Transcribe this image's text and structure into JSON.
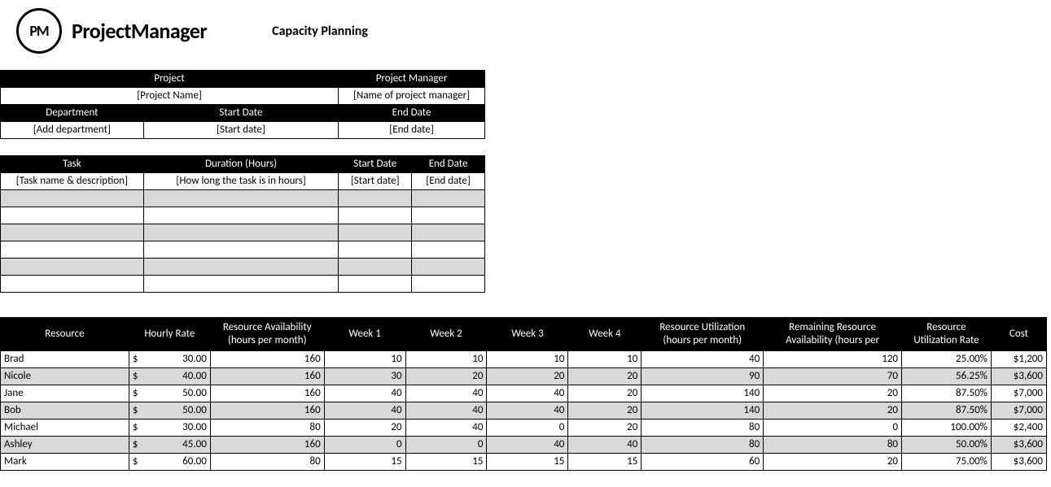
{
  "brand": {
    "logo_initials": "PM",
    "logo_text": "ProjectManager"
  },
  "page_title": "Capacity Planning",
  "project_header": {
    "row1": [
      "Project",
      "Project Manager"
    ],
    "row1_values": [
      "[Project Name]",
      "[Name of project manager]"
    ],
    "row2": [
      "Department",
      "Start Date",
      "End Date"
    ],
    "row2_values": [
      "[Add department]",
      "[Start date]",
      "[End date]"
    ]
  },
  "task_header": [
    "Task",
    "Duration (Hours)",
    "Start Date",
    "End Date"
  ],
  "task_placeholder": [
    "[Task name & description]",
    "[How long the task is in hours]",
    "[Start date]",
    "[End date]"
  ],
  "task_blank_rows": 6,
  "resource_header": [
    "Resource",
    "Hourly Rate",
    "Resource Availability (hours per month)",
    "Week 1",
    "Week 2",
    "Week 3",
    "Week 4",
    "Resource Utilization (hours per month)",
    "Remaining Resource Availability (hours per",
    "Resource Utilization Rate",
    "Cost"
  ],
  "resources": [
    {
      "name": "Brad",
      "rate": "30.00",
      "avail": 160,
      "w1": 10,
      "w2": 10,
      "w3": 10,
      "w4": 10,
      "util": 40,
      "remain": 120,
      "rate_pct": "25.00%",
      "cost": "$1,200"
    },
    {
      "name": "Nicole",
      "rate": "40.00",
      "avail": 160,
      "w1": 30,
      "w2": 20,
      "w3": 20,
      "w4": 20,
      "util": 90,
      "remain": 70,
      "rate_pct": "56.25%",
      "cost": "$3,600"
    },
    {
      "name": "Jane",
      "rate": "50.00",
      "avail": 160,
      "w1": 40,
      "w2": 40,
      "w3": 40,
      "w4": 20,
      "util": 140,
      "remain": 20,
      "rate_pct": "87.50%",
      "cost": "$7,000"
    },
    {
      "name": "Bob",
      "rate": "50.00",
      "avail": 160,
      "w1": 40,
      "w2": 40,
      "w3": 40,
      "w4": 20,
      "util": 140,
      "remain": 20,
      "rate_pct": "87.50%",
      "cost": "$7,000"
    },
    {
      "name": "Michael",
      "rate": "30.00",
      "avail": 80,
      "w1": 20,
      "w2": 40,
      "w3": 0,
      "w4": 20,
      "util": 80,
      "remain": 0,
      "rate_pct": "100.00%",
      "cost": "$2,400"
    },
    {
      "name": "Ashley",
      "rate": "45.00",
      "avail": 160,
      "w1": 0,
      "w2": 0,
      "w3": 40,
      "w4": 40,
      "util": 80,
      "remain": 80,
      "rate_pct": "50.00%",
      "cost": "$3,600"
    },
    {
      "name": "Mark",
      "rate": "60.00",
      "avail": 80,
      "w1": 15,
      "w2": 15,
      "w3": 15,
      "w4": 15,
      "util": 60,
      "remain": 20,
      "rate_pct": "75.00%",
      "cost": "$3,600"
    }
  ],
  "colors": {
    "header_bg": "#000000",
    "header_fg": "#ffffff",
    "alt_row": "#d9d9d9",
    "border": "#000000",
    "page_bg": "#ffffff"
  },
  "currency_symbol": "$"
}
